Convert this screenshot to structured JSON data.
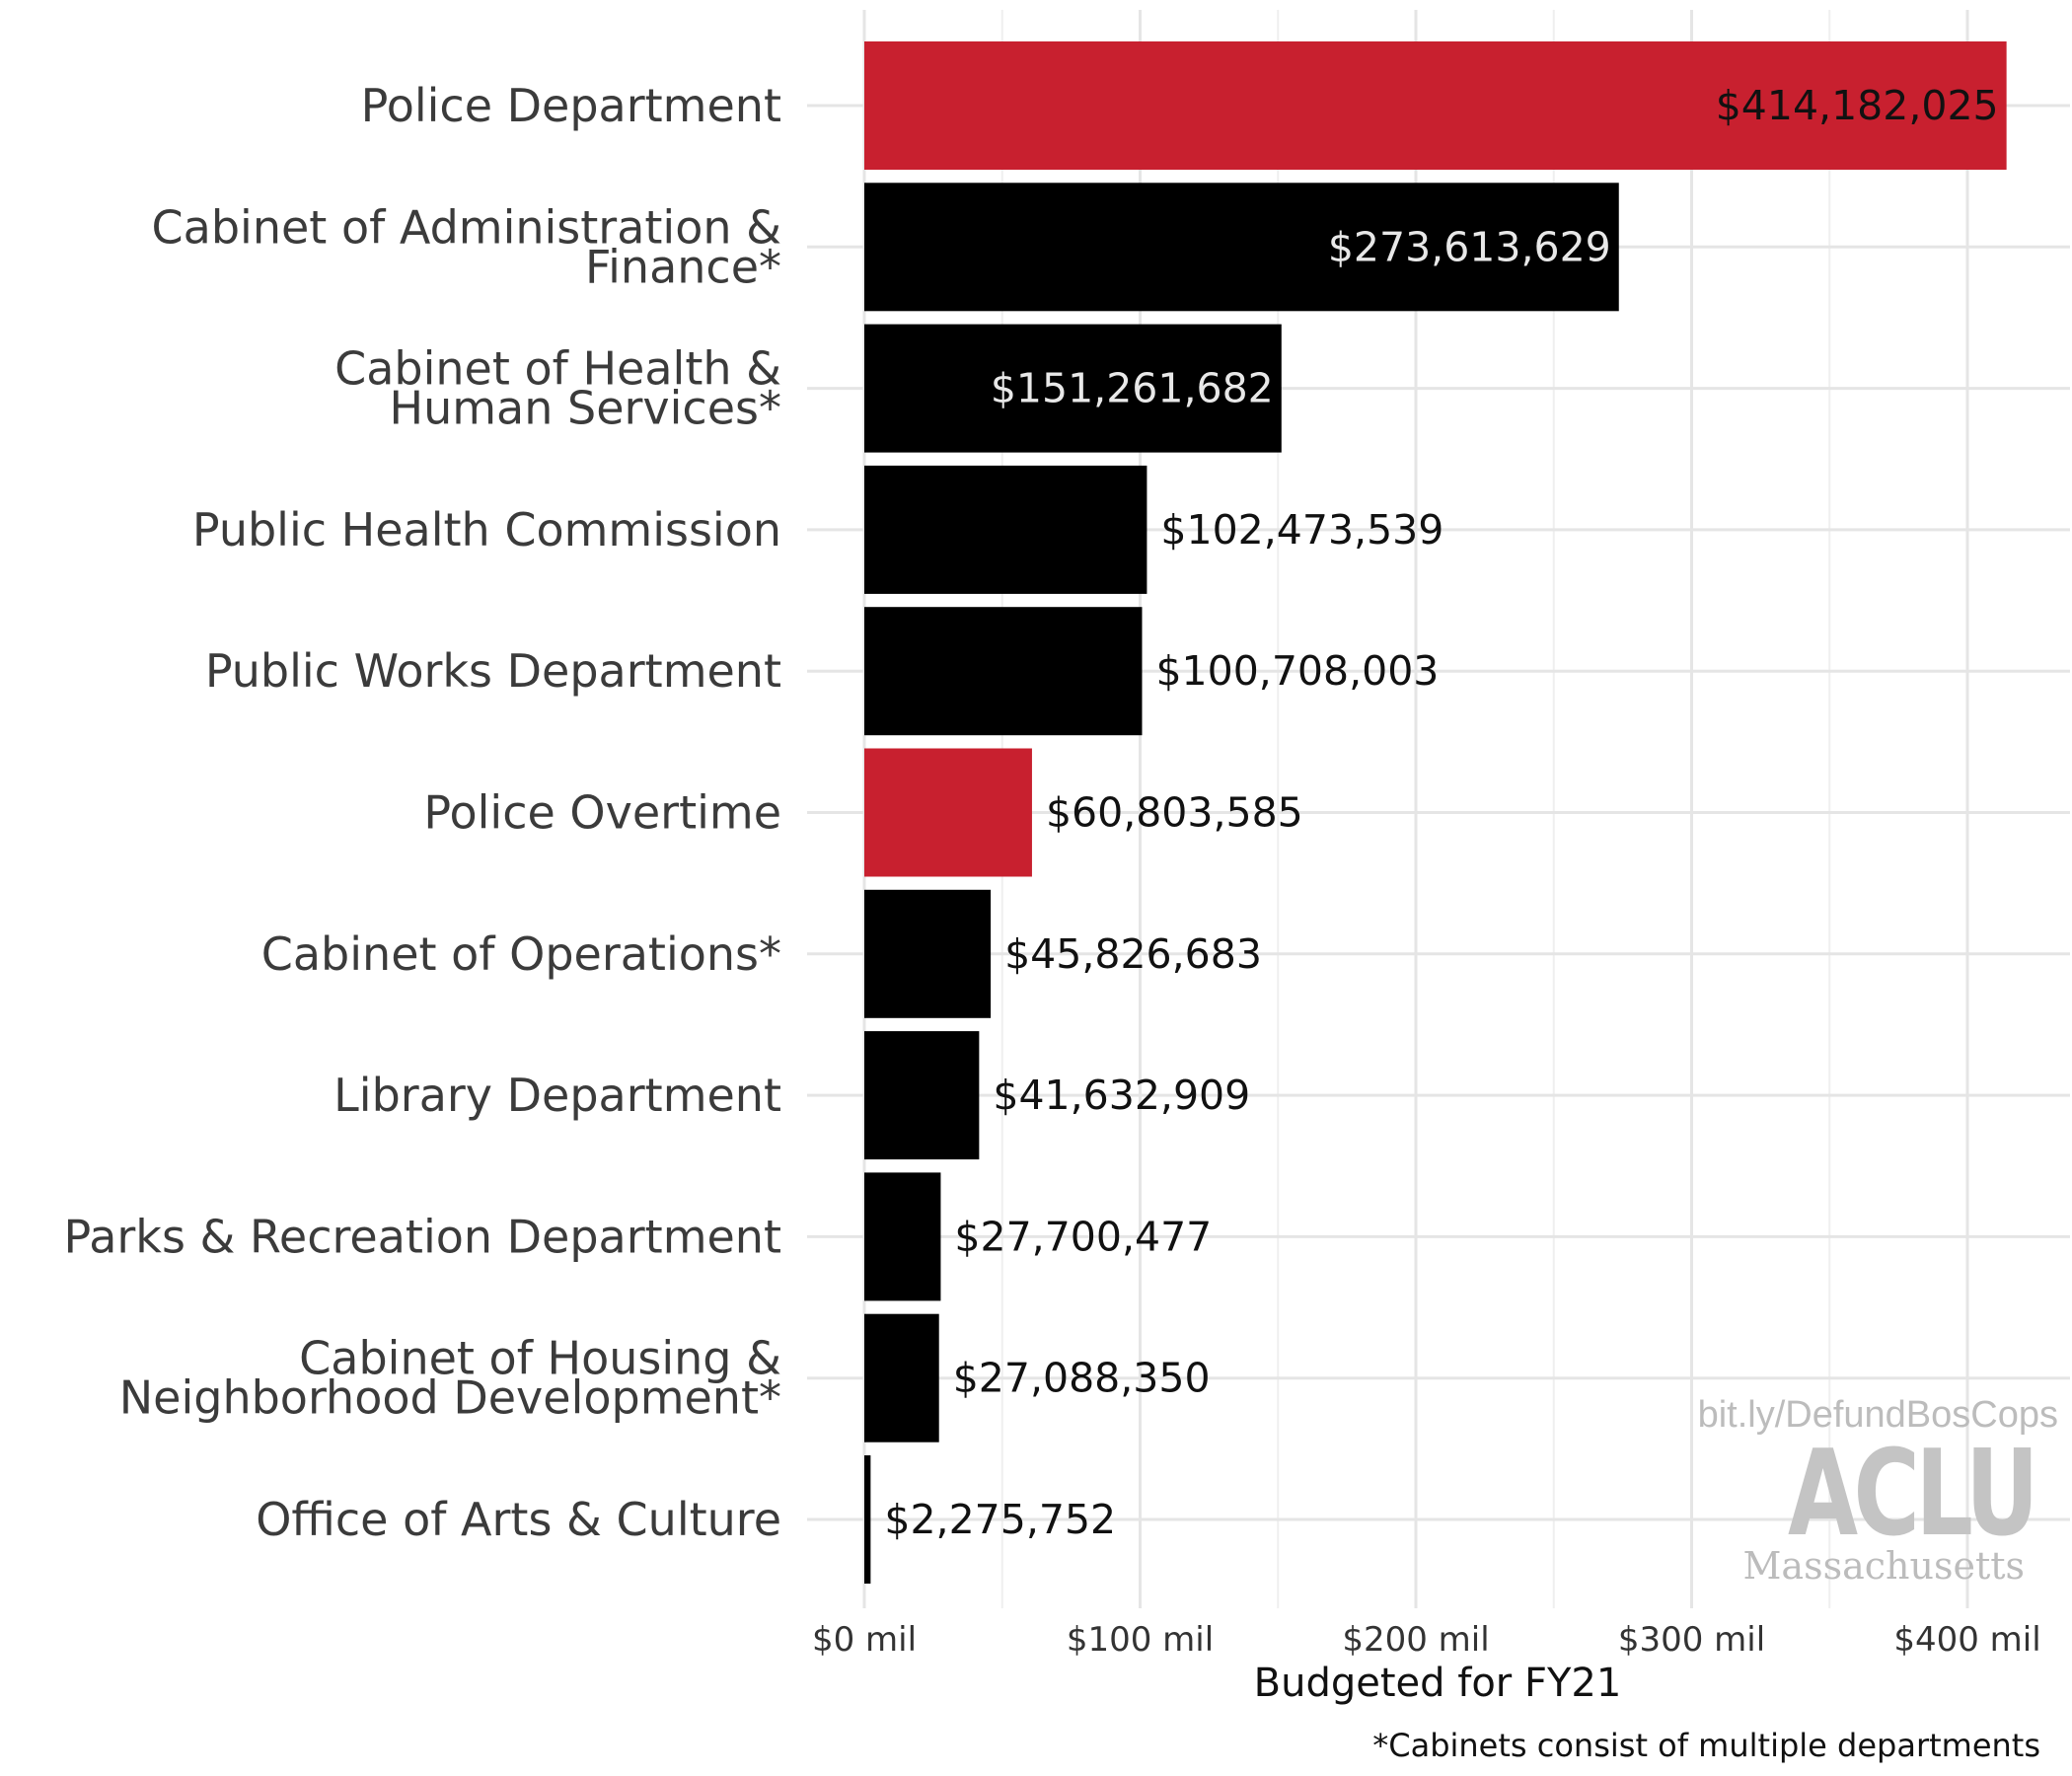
{
  "chart_data": {
    "type": "bar",
    "orientation": "horizontal",
    "categories": [
      [
        "Police Department"
      ],
      [
        "Cabinet of Administration &",
        "Finance*"
      ],
      [
        "Cabinet of Health &",
        "Human Services*"
      ],
      [
        "Public Health Commission"
      ],
      [
        "Public Works Department"
      ],
      [
        "Police Overtime"
      ],
      [
        "Cabinet of Operations*"
      ],
      [
        "Library Department"
      ],
      [
        "Parks & Recreation Department"
      ],
      [
        "Cabinet of Housing &",
        "Neighborhood Development*"
      ],
      [
        "Office of Arts & Culture"
      ]
    ],
    "values": [
      414182025,
      273613629,
      151261682,
      102473539,
      100708003,
      60803585,
      45826683,
      41632909,
      27700477,
      27088350,
      2275752
    ],
    "value_labels": [
      "$414,182,025",
      "$273,613,629",
      "$151,261,682",
      "$102,473,539",
      "$100,708,003",
      "$60,803,585",
      "$45,826,683",
      "$41,632,909",
      "$27,700,477",
      "$27,088,350",
      "$2,275,752"
    ],
    "highlight": [
      true,
      false,
      false,
      false,
      false,
      true,
      false,
      false,
      false,
      false,
      false
    ],
    "colors": {
      "highlight": "#c8202f",
      "default": "#000000",
      "grid": "#e5e5e5"
    },
    "xlim": [
      0,
      420000000
    ],
    "x_ticks": [
      0,
      100000000,
      200000000,
      300000000,
      400000000
    ],
    "x_tick_labels": [
      "$0 mil",
      "$100 mil",
      "$200 mil",
      "$300 mil",
      "$400 mil"
    ],
    "xlabel": "Budgeted for FY21",
    "ylabel": "",
    "grid": true
  },
  "footnote": "*Cabinets consist of multiple departments",
  "watermark": {
    "url": "bit.ly/DefundBosCops",
    "logo": "ACLU",
    "region": "Massachusetts"
  }
}
